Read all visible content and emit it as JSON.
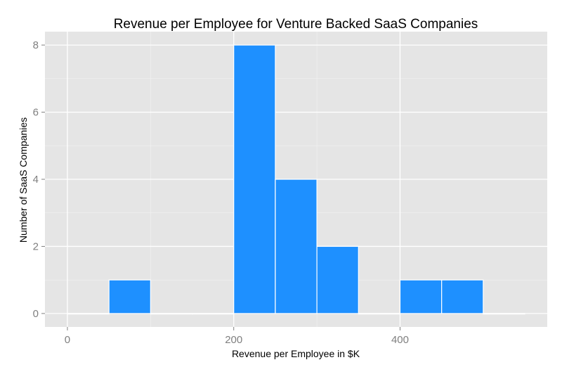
{
  "chart_data": {
    "type": "bar",
    "title": "Revenue per Employee for Venture Backed SaaS Companies",
    "xlabel": "Revenue per Employee in $K",
    "ylabel": "Number of SaaS Companies",
    "bin_width": 50,
    "bins": [
      {
        "x0": 0,
        "x1": 50,
        "count": 0
      },
      {
        "x0": 50,
        "x1": 100,
        "count": 1
      },
      {
        "x0": 100,
        "x1": 150,
        "count": 0
      },
      {
        "x0": 150,
        "x1": 200,
        "count": 0
      },
      {
        "x0": 200,
        "x1": 250,
        "count": 8
      },
      {
        "x0": 250,
        "x1": 300,
        "count": 4
      },
      {
        "x0": 300,
        "x1": 350,
        "count": 2
      },
      {
        "x0": 350,
        "x1": 400,
        "count": 0
      },
      {
        "x0": 400,
        "x1": 450,
        "count": 1
      },
      {
        "x0": 450,
        "x1": 500,
        "count": 1
      },
      {
        "x0": 500,
        "x1": 550,
        "count": 0
      }
    ],
    "xlim": [
      -27,
      577
    ],
    "ylim": [
      -0.4,
      8.4
    ],
    "xticks": [
      0,
      200,
      400
    ],
    "yticks": [
      0,
      2,
      4,
      6,
      8
    ],
    "grid": true,
    "colors": {
      "bar_fill": "#1E90FF",
      "bar_stroke": "#FFFFFF",
      "panel_background": "#E5E5E5",
      "grid_major": "#FFFFFF",
      "grid_minor": "#F2F2F2",
      "tick_label": "#7F7F7F"
    }
  }
}
